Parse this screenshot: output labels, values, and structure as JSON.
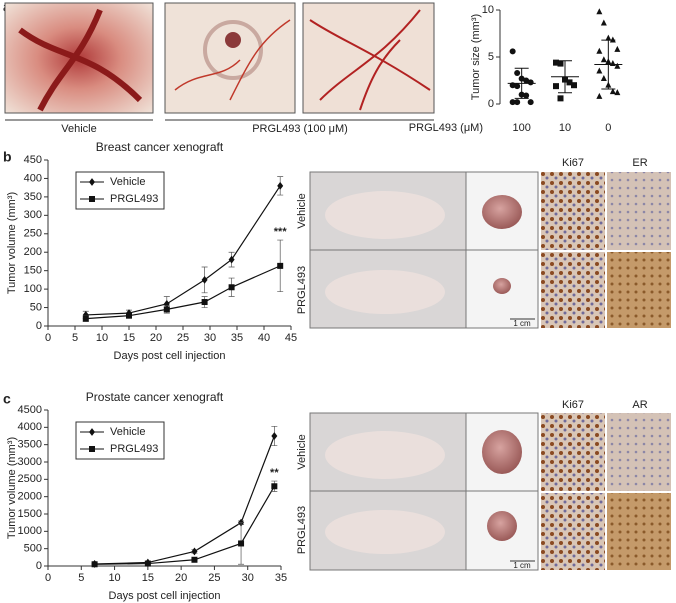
{
  "panels": {
    "a": "a",
    "b": "b",
    "c": "c",
    "a_vehicle": "Vehicle",
    "a_treated": "PRGL493 (100 μM)",
    "b_row1": "Vehicle",
    "b_row2": "PRGL493",
    "b_stain1": "Ki67",
    "b_stain2": "ER",
    "b_scale": "1 cm",
    "c_row1": "Vehicle",
    "c_row2": "PRGL493",
    "c_stain1": "Ki67",
    "c_stain2": "AR",
    "c_scale": "1 cm"
  },
  "chart_data": [
    {
      "type": "dot",
      "y_label": "Tumor size (mm³)",
      "x_label": "PRGL493 (μM)",
      "categories": [
        "100",
        "10",
        "0"
      ],
      "markers": [
        "circle",
        "square",
        "triangle"
      ],
      "color": "#111111",
      "points": [
        [
          5.6,
          3.3,
          2.7,
          2.5,
          2.3,
          2.0,
          1.9,
          1.0,
          0.9,
          0.2,
          0.2,
          0.2
        ],
        [
          4.4,
          4.3,
          2.6,
          2.3,
          2.0,
          1.9,
          0.6
        ],
        [
          9.8,
          8.6,
          7.0,
          6.8,
          5.8,
          5.6,
          4.7,
          4.5,
          4.3,
          4.0,
          3.5,
          2.7,
          2.0,
          1.3,
          1.2,
          0.8
        ]
      ],
      "means": [
        2.2,
        2.9,
        4.2
      ],
      "sd": [
        1.6,
        1.7,
        2.6
      ],
      "ylim": [
        0,
        10
      ],
      "yticks": [
        0,
        5,
        10
      ]
    },
    {
      "type": "line",
      "title": "Breast cancer xenograft",
      "x_label": "Days post cell injection",
      "y_label": "Tumor volume (mm³)",
      "x": [
        7,
        15,
        22,
        29,
        34,
        43
      ],
      "series": [
        {
          "name": "Vehicle",
          "color": "#111111",
          "marker": "diamond",
          "values": [
            30,
            35,
            60,
            125,
            180,
            380
          ],
          "errors": [
            10,
            8,
            20,
            35,
            20,
            25
          ]
        },
        {
          "name": "PRGL493",
          "color": "#111111",
          "marker": "square",
          "values": [
            20,
            28,
            45,
            65,
            105,
            163
          ],
          "errors": [
            8,
            5,
            10,
            15,
            25,
            70
          ]
        }
      ],
      "annotation": "***",
      "legend": "upper left",
      "xlim": [
        0,
        45
      ],
      "xticks": [
        0,
        5,
        10,
        15,
        20,
        25,
        30,
        35,
        40,
        45
      ],
      "ylim": [
        0,
        450
      ],
      "yticks": [
        0,
        50,
        100,
        150,
        200,
        250,
        300,
        350,
        400,
        450
      ]
    },
    {
      "type": "line",
      "title": "Prostate cancer xenograft",
      "x_label": "Days post cell injection",
      "y_label": "Tumor volume (mm³)",
      "x": [
        7,
        15,
        22,
        29,
        34
      ],
      "series": [
        {
          "name": "Vehicle",
          "color": "#111111",
          "marker": "diamond",
          "values": [
            60,
            100,
            420,
            1250,
            3750
          ],
          "errors": [
            20,
            20,
            50,
            50,
            280
          ]
        },
        {
          "name": "PRGL493",
          "color": "#111111",
          "marker": "square",
          "values": [
            50,
            70,
            180,
            650,
            2300
          ],
          "errors": [
            10,
            10,
            30,
            600,
            150
          ]
        }
      ],
      "annotation": "**",
      "legend": "upper left",
      "xlim": [
        0,
        35
      ],
      "xticks": [
        0,
        5,
        10,
        15,
        20,
        25,
        30,
        35
      ],
      "ylim": [
        0,
        4500
      ],
      "yticks": [
        0,
        500,
        1000,
        1500,
        2000,
        2500,
        3000,
        3500,
        4000,
        4500
      ]
    }
  ]
}
